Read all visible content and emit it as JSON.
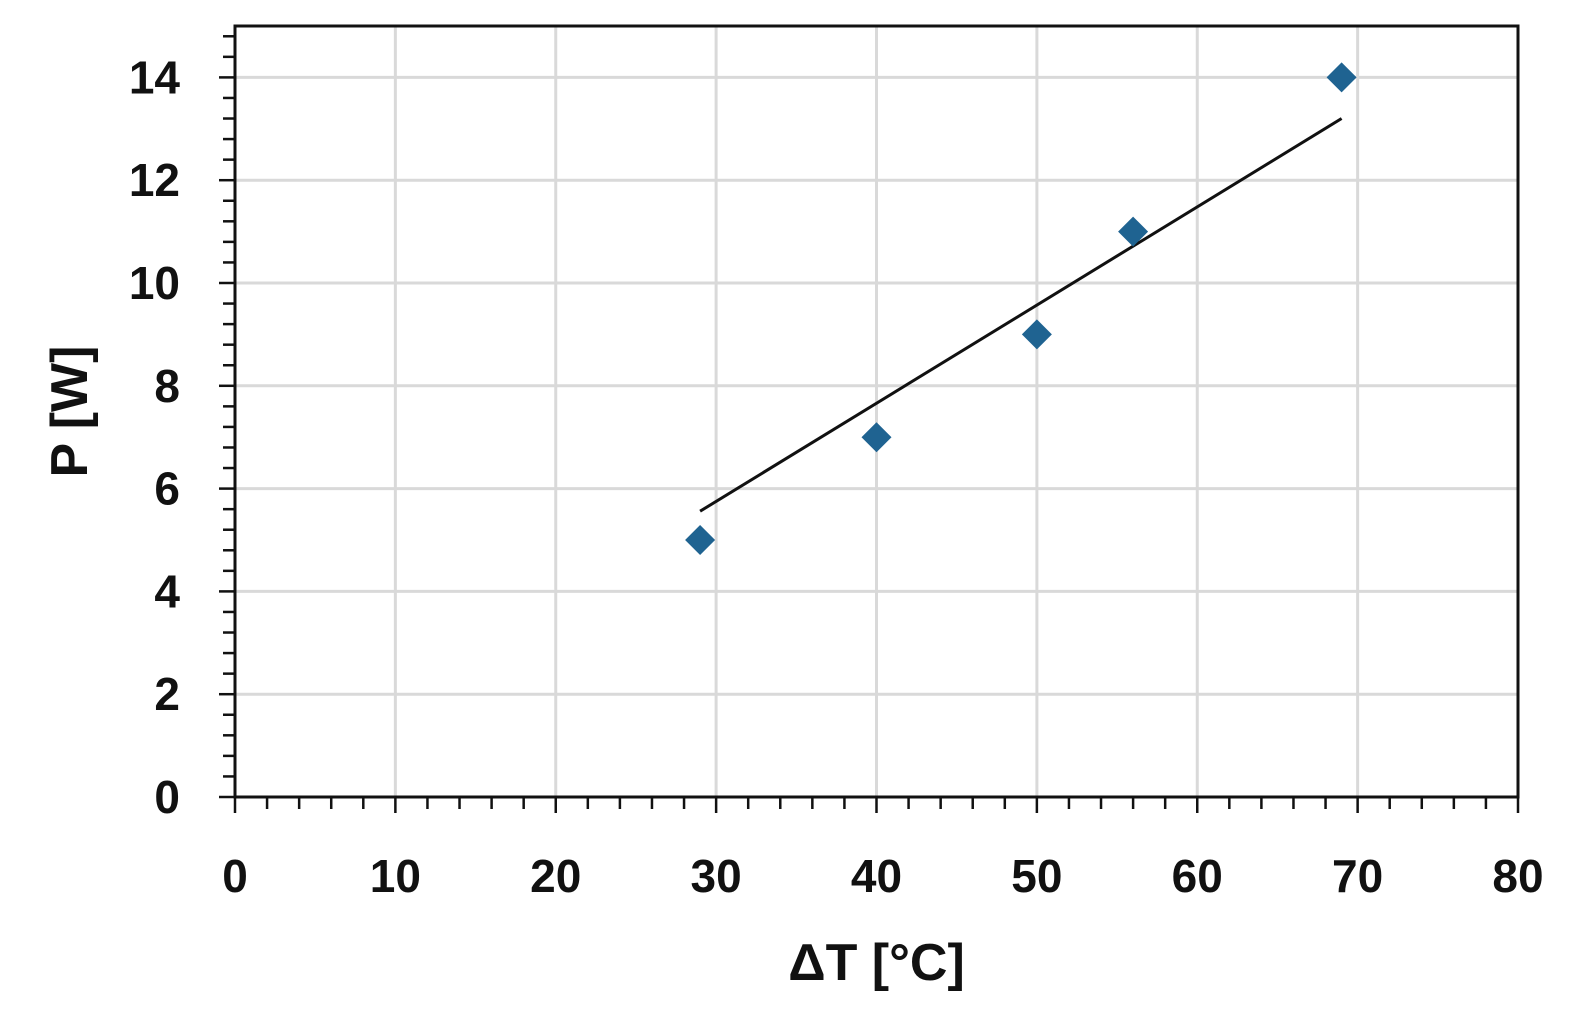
{
  "chart_data": {
    "type": "scatter",
    "title": "",
    "xlabel": "ΔT [°C]",
    "ylabel": "P [W]",
    "xlim": [
      0,
      80
    ],
    "ylim": [
      0,
      15
    ],
    "x_ticks": [
      0,
      10,
      20,
      30,
      40,
      50,
      60,
      70,
      80
    ],
    "y_ticks": [
      0,
      2,
      4,
      6,
      8,
      10,
      12,
      14
    ],
    "x_tick_labels": [
      "0",
      "10",
      "20",
      "30",
      "40",
      "50",
      "60",
      "70",
      "80"
    ],
    "y_tick_labels": [
      "0",
      "2",
      "4",
      "6",
      "8",
      "10",
      "12",
      "14"
    ],
    "x_minor_step": 2,
    "y_minor_step": 0.4,
    "grid": true,
    "marker": "diamond",
    "series": [
      {
        "x": [
          29,
          40,
          50,
          56,
          69
        ],
        "y": [
          5,
          7,
          9,
          11,
          14
        ],
        "color": "#1f6391"
      }
    ],
    "trendline": {
      "type": "linear",
      "x": [
        29,
        69
      ],
      "y": [
        5.56,
        13.2
      ],
      "color": "#111111"
    }
  }
}
